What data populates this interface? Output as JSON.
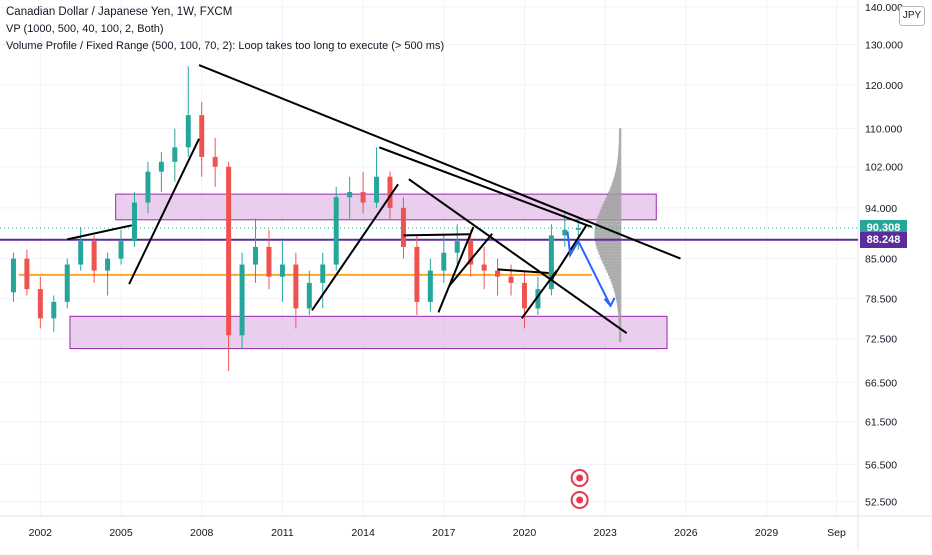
{
  "header": {
    "title": "Canadian Dollar / Japanese Yen, 1W, FXCM",
    "vp_indicator": "VP (1000, 500, 40, 100, 2, Both)",
    "vpfr_indicator": "Volume Profile / Fixed Range (500, 100, 70, 2): Loop takes too long to execute (> 500 ms)",
    "currency_badge": "JPY"
  },
  "colors": {
    "candle_up": "#26a69a",
    "candle_down": "#ef5350",
    "zone_fill": "#e1bee7",
    "zone_border": "#9c27b0",
    "purple_line": "#5b2c9e",
    "orange_line": "#ffa726",
    "current_price": "#26a69a",
    "arrow_blue": "#2962ff",
    "volume_profile": "#9e9e9e",
    "marker_red": "#e53950"
  },
  "chart_data": {
    "type": "candlestick",
    "title": "Canadian Dollar / Japanese Yen, 1W, FXCM",
    "x_ticks": [
      "2002",
      "2005",
      "2008",
      "2011",
      "2014",
      "2017",
      "2020",
      "2023",
      "2026",
      "2029",
      "Sep"
    ],
    "y_ticks": [
      "52.500",
      "56.500",
      "61.500",
      "66.500",
      "72.500",
      "78.500",
      "85.000",
      "94.000",
      "102.000",
      "110.000",
      "120.000",
      "130.000",
      "140.000"
    ],
    "y_range": [
      51,
      142
    ],
    "y_scale": "log",
    "x_range": [
      2000.5,
      2032.4
    ],
    "price_tags": [
      {
        "value": 90.308,
        "label": "90.308",
        "style": "current"
      },
      {
        "value": 88.248,
        "label": "88.248",
        "style": "level"
      }
    ],
    "horizontal_levels": [
      {
        "value": 88.248,
        "kind": "purple-line"
      },
      {
        "value": 90.308,
        "kind": "current-dotted"
      },
      {
        "value": 82.3,
        "kind": "orange-line"
      }
    ],
    "zones": [
      {
        "name": "supply-zone",
        "x0": 2004.8,
        "x1": 2024.9,
        "y_low": 91.8,
        "y_high": 96.6
      },
      {
        "name": "demand-zone",
        "x0": 2003.1,
        "x1": 2025.3,
        "y_low": 71.1,
        "y_high": 75.8
      }
    ],
    "trendlines": [
      {
        "name": "main-downtrend",
        "points": [
          [
            2007.9,
            124.8
          ],
          [
            2025.8,
            85.0
          ]
        ]
      },
      {
        "name": "upper-downtrend",
        "points": [
          [
            2014.6,
            106.0
          ],
          [
            2022.5,
            90.5
          ]
        ]
      },
      {
        "name": "lower-downtrend",
        "points": [
          [
            2015.7,
            99.5
          ],
          [
            2023.8,
            73.3
          ]
        ]
      },
      {
        "name": "rise-2003",
        "points": [
          [
            2003.0,
            88.3
          ],
          [
            2005.4,
            90.8
          ]
        ]
      },
      {
        "name": "rise-2005",
        "points": [
          [
            2005.3,
            80.8
          ],
          [
            2007.9,
            107.8
          ]
        ]
      },
      {
        "name": "rise-2012",
        "points": [
          [
            2012.1,
            76.7
          ],
          [
            2015.3,
            98.5
          ]
        ]
      },
      {
        "name": "rise-2016",
        "points": [
          [
            2016.8,
            76.4
          ],
          [
            2018.1,
            90.5
          ]
        ]
      },
      {
        "name": "rise-2017",
        "points": [
          [
            2017.2,
            80.5
          ],
          [
            2018.8,
            89.3
          ]
        ]
      },
      {
        "name": "rise-2019",
        "points": [
          [
            2019.9,
            75.5
          ],
          [
            2021.2,
            83.0
          ]
        ]
      },
      {
        "name": "flat-2015",
        "points": [
          [
            2015.5,
            89.0
          ],
          [
            2018.0,
            89.2
          ]
        ]
      },
      {
        "name": "flat-2018",
        "points": [
          [
            2019.0,
            83.2
          ],
          [
            2020.9,
            82.6
          ]
        ]
      },
      {
        "name": "channel-2021",
        "points": [
          [
            2021.0,
            81.5
          ],
          [
            2022.3,
            90.8
          ]
        ]
      }
    ],
    "projection_arrow": [
      [
        2021.6,
        89.7
      ],
      [
        2021.7,
        85.6
      ],
      [
        2022.0,
        88.0
      ],
      [
        2023.2,
        77.4
      ]
    ],
    "volume_profile_range": [
      2022.6,
      2023.6
    ],
    "candles": [
      {
        "t": 2001.0,
        "o": 79.5,
        "h": 86.0,
        "l": 78.0,
        "c": 85.0
      },
      {
        "t": 2001.5,
        "o": 85.0,
        "h": 86.5,
        "l": 79.0,
        "c": 80.0
      },
      {
        "t": 2002.0,
        "o": 80.0,
        "h": 82.0,
        "l": 74.0,
        "c": 75.5
      },
      {
        "t": 2002.5,
        "o": 75.5,
        "h": 79.0,
        "l": 73.5,
        "c": 78.0
      },
      {
        "t": 2003.0,
        "o": 78.0,
        "h": 85.0,
        "l": 77.0,
        "c": 84.0
      },
      {
        "t": 2003.5,
        "o": 84.0,
        "h": 90.5,
        "l": 83.0,
        "c": 88.0
      },
      {
        "t": 2004.0,
        "o": 88.0,
        "h": 89.0,
        "l": 81.0,
        "c": 83.0
      },
      {
        "t": 2004.5,
        "o": 83.0,
        "h": 86.0,
        "l": 79.0,
        "c": 85.0
      },
      {
        "t": 2005.0,
        "o": 85.0,
        "h": 90.0,
        "l": 84.0,
        "c": 88.0
      },
      {
        "t": 2005.5,
        "o": 88.0,
        "h": 97.0,
        "l": 87.0,
        "c": 95.0
      },
      {
        "t": 2006.0,
        "o": 95.0,
        "h": 103.0,
        "l": 93.0,
        "c": 101.0
      },
      {
        "t": 2006.5,
        "o": 101.0,
        "h": 105.0,
        "l": 97.0,
        "c": 103.0
      },
      {
        "t": 2007.0,
        "o": 103.0,
        "h": 110.0,
        "l": 99.0,
        "c": 106.0
      },
      {
        "t": 2007.5,
        "o": 106.0,
        "h": 124.5,
        "l": 104.0,
        "c": 113.0
      },
      {
        "t": 2008.0,
        "o": 113.0,
        "h": 116.0,
        "l": 100.0,
        "c": 104.0
      },
      {
        "t": 2008.5,
        "o": 104.0,
        "h": 108.0,
        "l": 98.0,
        "c": 102.0
      },
      {
        "t": 2009.0,
        "o": 102.0,
        "h": 103.0,
        "l": 68.0,
        "c": 73.0
      },
      {
        "t": 2009.5,
        "o": 73.0,
        "h": 86.0,
        "l": 71.0,
        "c": 84.0
      },
      {
        "t": 2010.0,
        "o": 84.0,
        "h": 92.0,
        "l": 81.0,
        "c": 87.0
      },
      {
        "t": 2010.5,
        "o": 87.0,
        "h": 90.0,
        "l": 80.0,
        "c": 82.0
      },
      {
        "t": 2011.0,
        "o": 82.0,
        "h": 88.0,
        "l": 78.0,
        "c": 84.0
      },
      {
        "t": 2011.5,
        "o": 84.0,
        "h": 86.0,
        "l": 74.0,
        "c": 77.0
      },
      {
        "t": 2012.0,
        "o": 77.0,
        "h": 83.0,
        "l": 76.0,
        "c": 81.0
      },
      {
        "t": 2012.5,
        "o": 81.0,
        "h": 86.0,
        "l": 77.0,
        "c": 84.0
      },
      {
        "t": 2013.0,
        "o": 84.0,
        "h": 98.0,
        "l": 83.0,
        "c": 96.0
      },
      {
        "t": 2013.5,
        "o": 96.0,
        "h": 100.0,
        "l": 92.0,
        "c": 97.0
      },
      {
        "t": 2014.0,
        "o": 97.0,
        "h": 101.0,
        "l": 93.0,
        "c": 95.0
      },
      {
        "t": 2014.5,
        "o": 95.0,
        "h": 106.0,
        "l": 94.0,
        "c": 100.0
      },
      {
        "t": 2015.0,
        "o": 100.0,
        "h": 101.0,
        "l": 92.0,
        "c": 94.0
      },
      {
        "t": 2015.5,
        "o": 94.0,
        "h": 96.0,
        "l": 85.0,
        "c": 87.0
      },
      {
        "t": 2016.0,
        "o": 87.0,
        "h": 89.0,
        "l": 76.0,
        "c": 78.0
      },
      {
        "t": 2016.5,
        "o": 78.0,
        "h": 85.0,
        "l": 76.5,
        "c": 83.0
      },
      {
        "t": 2017.0,
        "o": 83.0,
        "h": 89.0,
        "l": 81.0,
        "c": 86.0
      },
      {
        "t": 2017.5,
        "o": 86.0,
        "h": 91.0,
        "l": 84.0,
        "c": 88.0
      },
      {
        "t": 2018.0,
        "o": 88.0,
        "h": 90.0,
        "l": 82.0,
        "c": 84.0
      },
      {
        "t": 2018.5,
        "o": 84.0,
        "h": 87.0,
        "l": 80.0,
        "c": 83.0
      },
      {
        "t": 2019.0,
        "o": 83.0,
        "h": 85.0,
        "l": 79.0,
        "c": 82.0
      },
      {
        "t": 2019.5,
        "o": 82.0,
        "h": 84.0,
        "l": 79.0,
        "c": 81.0
      },
      {
        "t": 2020.0,
        "o": 81.0,
        "h": 83.0,
        "l": 74.0,
        "c": 77.0
      },
      {
        "t": 2020.5,
        "o": 77.0,
        "h": 82.0,
        "l": 76.0,
        "c": 80.0
      },
      {
        "t": 2021.0,
        "o": 80.0,
        "h": 91.0,
        "l": 79.0,
        "c": 89.0
      },
      {
        "t": 2021.5,
        "o": 89.0,
        "h": 93.0,
        "l": 87.0,
        "c": 90.0
      },
      {
        "t": 2022.0,
        "o": 90.0,
        "h": 92.0,
        "l": 86.5,
        "c": 90.3
      }
    ],
    "event_markers": [
      {
        "t": 2022.05,
        "kind": "dividend",
        "label": "D"
      },
      {
        "t": 2022.05,
        "kind": "split",
        "label": "S"
      }
    ]
  }
}
